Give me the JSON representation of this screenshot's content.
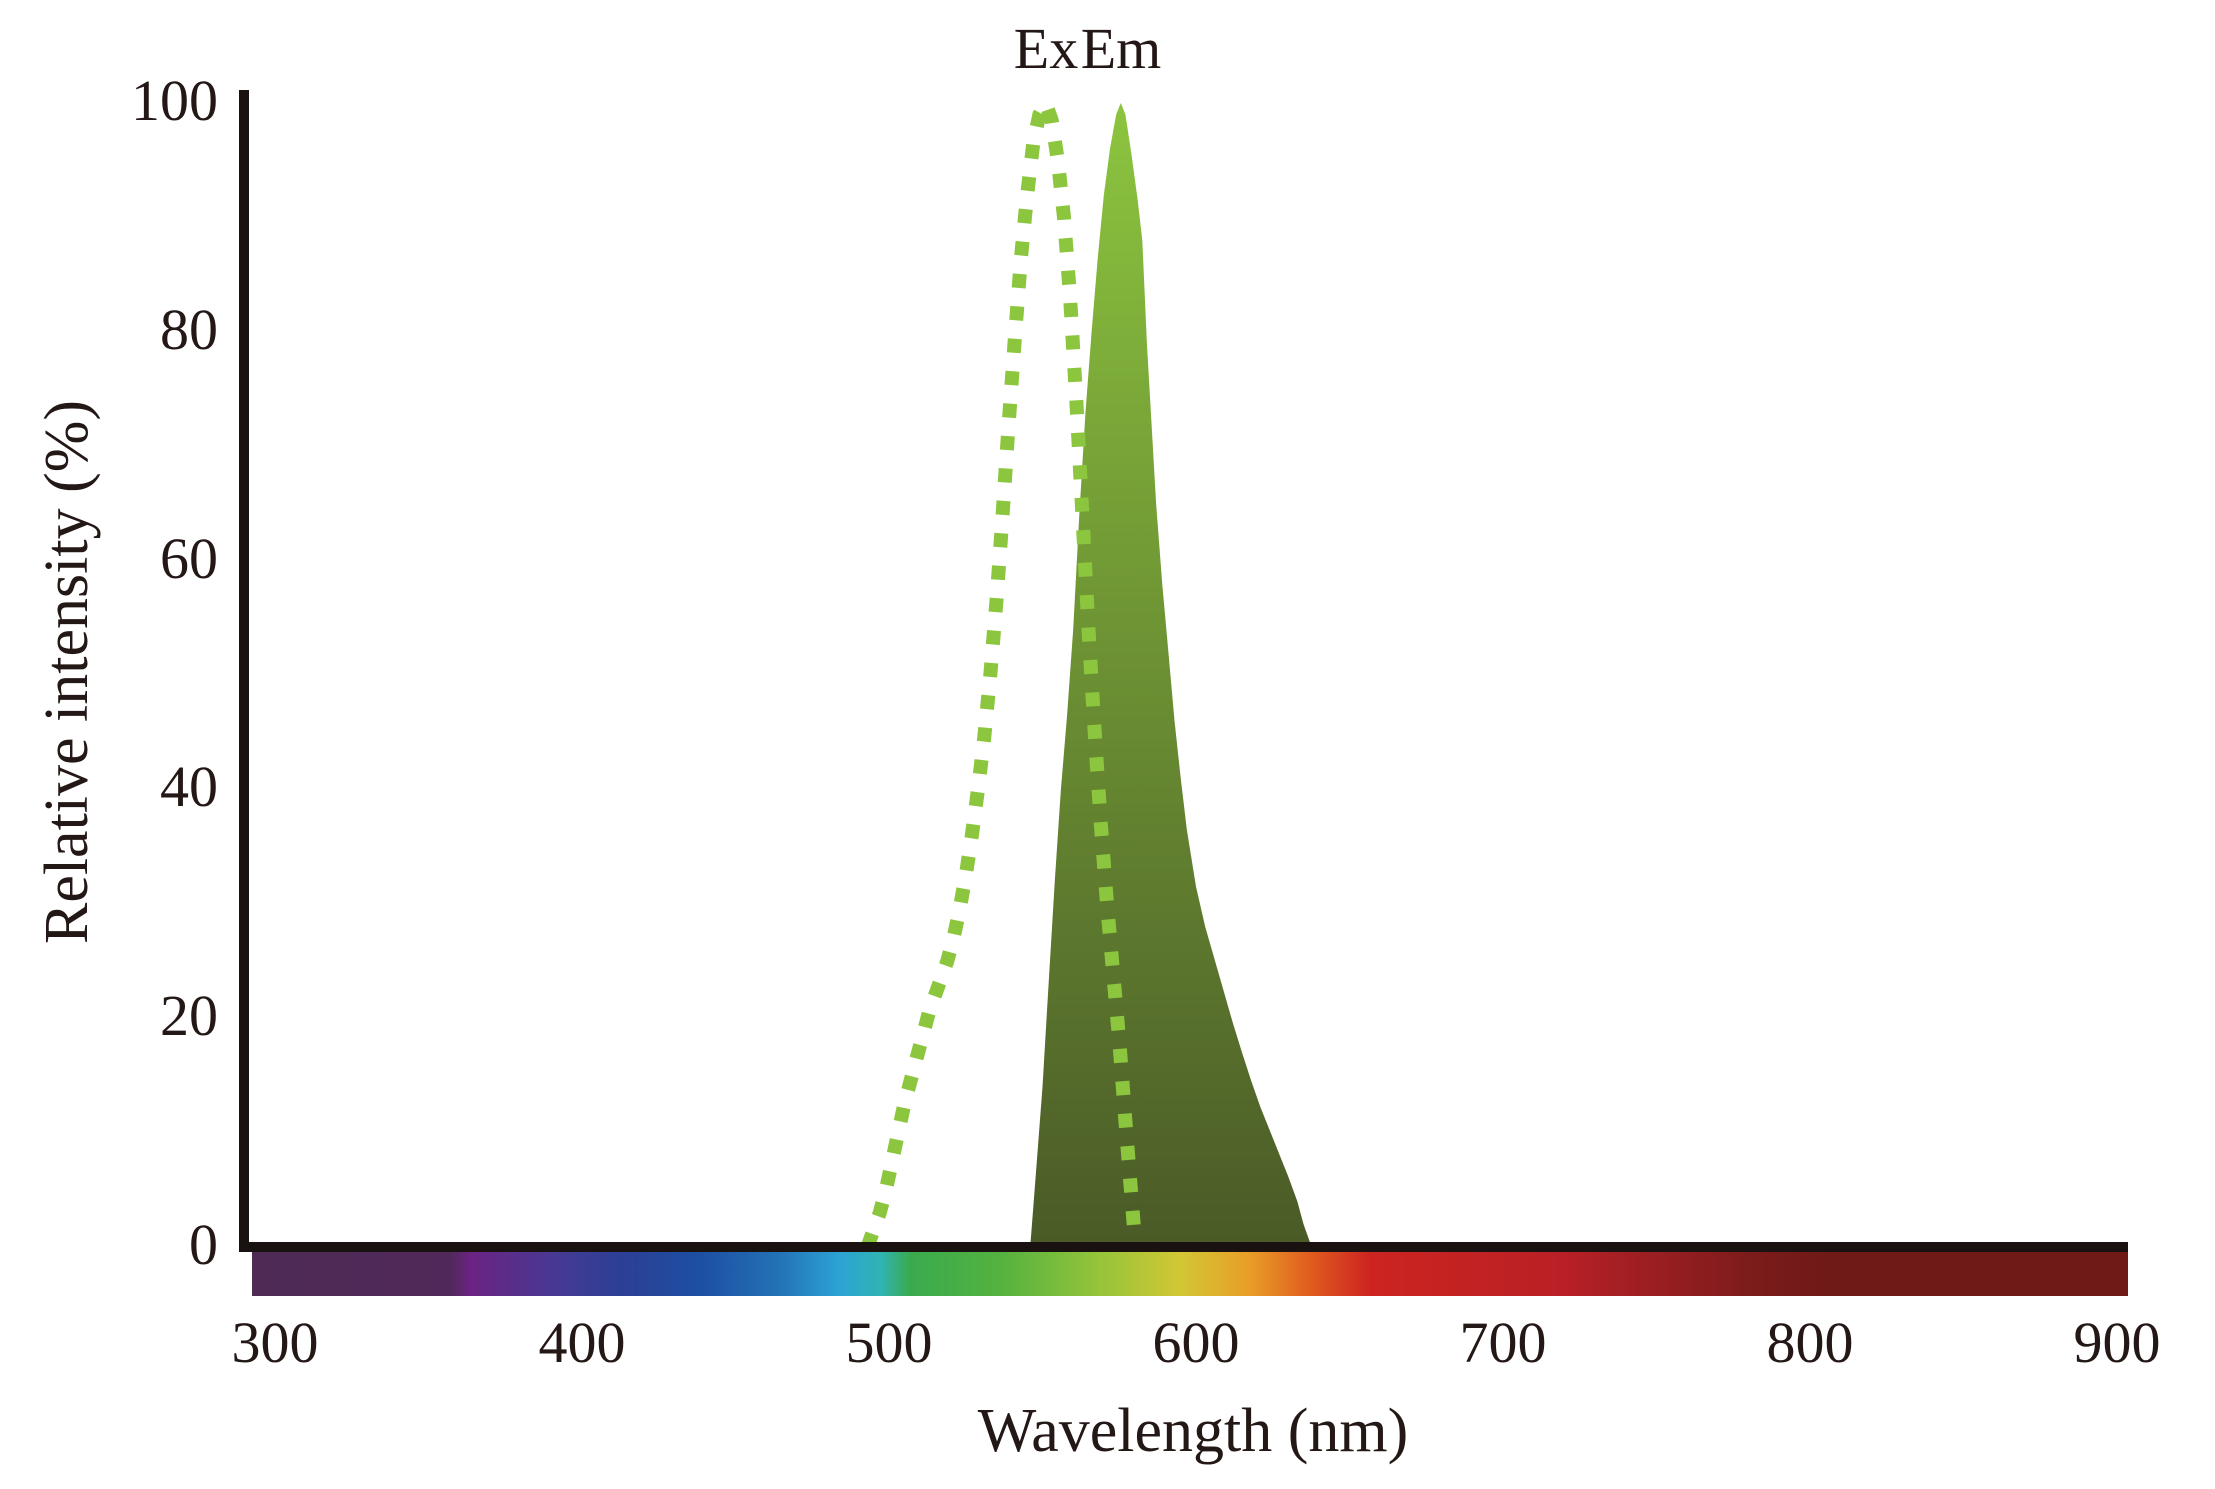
{
  "colors": {
    "text": "#231815",
    "axis_line": "#191210",
    "ex_line": "#8cc63e",
    "em_fill_top": "#8dc63f",
    "em_fill_bottom": "#4a5a27",
    "background": "#ffffff"
  },
  "chart_data": {
    "type": "area",
    "title": "",
    "xlabel": "Wavelength (nm)",
    "ylabel": "Relative intensity (%)",
    "xlim": [
      300,
      900
    ],
    "ylim": [
      0,
      100
    ],
    "grid": false,
    "legend_position": "top-center-above-peaks",
    "x_ticks": [
      "300",
      "400",
      "500",
      "600",
      "700",
      "800",
      "900"
    ],
    "y_ticks": [
      "100",
      "80",
      "60",
      "40",
      "20",
      "0"
    ],
    "series": [
      {
        "name": "Ex",
        "style": "dotted-line",
        "color": "#8cc63e",
        "peak_nm": 551,
        "points": [
          [
            493,
            0
          ],
          [
            495,
            1.5
          ],
          [
            497,
            3
          ],
          [
            499,
            5
          ],
          [
            501,
            7.5
          ],
          [
            503,
            10
          ],
          [
            505,
            12.5
          ],
          [
            507,
            14.5
          ],
          [
            509,
            16.5
          ],
          [
            511,
            18.5
          ],
          [
            513,
            20.5
          ],
          [
            515,
            22
          ],
          [
            517,
            23.5
          ],
          [
            519,
            25
          ],
          [
            521,
            27
          ],
          [
            523,
            29.5
          ],
          [
            525,
            32.5
          ],
          [
            527,
            36
          ],
          [
            529,
            40
          ],
          [
            531,
            44.5
          ],
          [
            533,
            50
          ],
          [
            535,
            56.5
          ],
          [
            537,
            64
          ],
          [
            539,
            72
          ],
          [
            541,
            79.5
          ],
          [
            543,
            86.5
          ],
          [
            545,
            92
          ],
          [
            547,
            96.5
          ],
          [
            549,
            99
          ],
          [
            551,
            100
          ],
          [
            553,
            98.5
          ],
          [
            555,
            95
          ],
          [
            557,
            90
          ],
          [
            559,
            83
          ],
          [
            561,
            74
          ],
          [
            563,
            64
          ],
          [
            565,
            54
          ],
          [
            567,
            45
          ],
          [
            569,
            37
          ],
          [
            571,
            30
          ],
          [
            573,
            24
          ],
          [
            575,
            18
          ],
          [
            577,
            11
          ],
          [
            578.5,
            6
          ],
          [
            580,
            1
          ],
          [
            580.5,
            0
          ]
        ]
      },
      {
        "name": "Em",
        "style": "filled-area",
        "color_top": "#8dc63f",
        "color_bottom": "#4a5a27",
        "peak_nm": 575.5,
        "points": [
          [
            546,
            0
          ],
          [
            548,
            7
          ],
          [
            550,
            14
          ],
          [
            552,
            23
          ],
          [
            554,
            32
          ],
          [
            556,
            40
          ],
          [
            558,
            46.5
          ],
          [
            560,
            54
          ],
          [
            562,
            64
          ],
          [
            564,
            73
          ],
          [
            566,
            80
          ],
          [
            568,
            86.5
          ],
          [
            570,
            92
          ],
          [
            572,
            96
          ],
          [
            574,
            99
          ],
          [
            575.5,
            100
          ],
          [
            577,
            99
          ],
          [
            579,
            95.5
          ],
          [
            581,
            91.5
          ],
          [
            582.5,
            88
          ],
          [
            584,
            79
          ],
          [
            585.5,
            72
          ],
          [
            587,
            65
          ],
          [
            589,
            58
          ],
          [
            591,
            52
          ],
          [
            593,
            46
          ],
          [
            595,
            41
          ],
          [
            597,
            36.5
          ],
          [
            600,
            31.5
          ],
          [
            603,
            28
          ],
          [
            606,
            25.2
          ],
          [
            609,
            22.4
          ],
          [
            612,
            19.6
          ],
          [
            615,
            17
          ],
          [
            618,
            14.5
          ],
          [
            621,
            12.2
          ],
          [
            624,
            10.2
          ],
          [
            627,
            8.2
          ],
          [
            630,
            6.2
          ],
          [
            633,
            4
          ],
          [
            635,
            2
          ],
          [
            637,
            0.5
          ],
          [
            638,
            0
          ]
        ]
      }
    ],
    "spectrum_bar_stops": [
      {
        "pos": 0.0,
        "color": "#4e2a55"
      },
      {
        "pos": 0.106,
        "color": "#50295a"
      },
      {
        "pos": 0.116,
        "color": "#6b2382"
      },
      {
        "pos": 0.164,
        "color": "#453a94"
      },
      {
        "pos": 0.196,
        "color": "#2c3f95"
      },
      {
        "pos": 0.239,
        "color": "#1d4fa2"
      },
      {
        "pos": 0.281,
        "color": "#2372b6"
      },
      {
        "pos": 0.313,
        "color": "#2ba3d4"
      },
      {
        "pos": 0.335,
        "color": "#2fb4b4"
      },
      {
        "pos": 0.351,
        "color": "#3aaa4e"
      },
      {
        "pos": 0.399,
        "color": "#54b23f"
      },
      {
        "pos": 0.452,
        "color": "#96c43a"
      },
      {
        "pos": 0.495,
        "color": "#d2c734"
      },
      {
        "pos": 0.532,
        "color": "#e89d27"
      },
      {
        "pos": 0.564,
        "color": "#e05c1f"
      },
      {
        "pos": 0.596,
        "color": "#cd2420"
      },
      {
        "pos": 0.697,
        "color": "#b92025"
      },
      {
        "pos": 0.745,
        "color": "#9c1e22"
      },
      {
        "pos": 0.799,
        "color": "#7d1b1b"
      },
      {
        "pos": 0.836,
        "color": "#701a17"
      },
      {
        "pos": 1.0,
        "color": "#701a17"
      }
    ]
  }
}
